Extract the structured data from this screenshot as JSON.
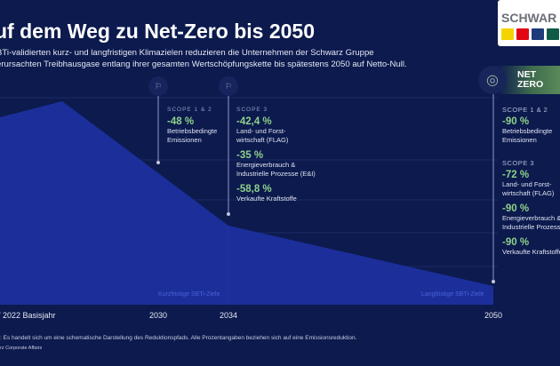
{
  "header": {
    "title": "uf dem Weg zu Net-Zero bis 2050",
    "subtitle_line1": "BTi-validierten kurz- und langfristigen Klimazielen reduzieren die Unternehmen der Schwarz Gruppe",
    "subtitle_line2": "erursachten Treibhausgase entlang ihrer gesamten Wertschöpfungskette bis spätestens 2050 auf Netto-Null."
  },
  "logo": {
    "text": "SCHWAR",
    "brand_colors": [
      "#f4d400",
      "#e30613",
      "#1d3a7a",
      "#0f5b47"
    ]
  },
  "net_zero_badge": {
    "line1": "NET",
    "line2": "ZERO",
    "icon": "globe-leaf-icon"
  },
  "chart_data": {
    "type": "area",
    "x_labels": [
      "/ 2022 Basisjahr",
      "2030",
      "2034",
      "2050"
    ],
    "annotations": {
      "short_term": "Kurzfristige SBTi-Ziele",
      "long_term": "Langfristige SBTi-Ziele"
    },
    "area_color": "#1c2e9a",
    "background": "#0c1a4e",
    "accent": "#8fd08a"
  },
  "milestones": [
    {
      "year": "2030",
      "icon": "flag-icon",
      "groups": [
        {
          "scope": "SCOPE 1 & 2",
          "items": [
            {
              "pct": "-48 %",
              "desc": "Betriebsbedingte Emissionen"
            }
          ]
        }
      ]
    },
    {
      "year": "2034",
      "icon": "flag-icon",
      "groups": [
        {
          "scope": "SCOPE 3",
          "items": [
            {
              "pct": "-42,4 %",
              "desc": "Land- und Forst-wirtschaft (FLAG)"
            },
            {
              "pct": "-35 %",
              "desc": "Energieverbrauch & Industrielle Prozesse (E&I)"
            },
            {
              "pct": "-58,8 %",
              "desc": "Verkaufte Kraftstoffe"
            }
          ]
        }
      ]
    },
    {
      "year": "2050",
      "groups": [
        {
          "scope": "SCOPE 1 & 2",
          "items": [
            {
              "pct": "-90 %",
              "desc": "Betriebsbedingte Emissionen"
            }
          ]
        },
        {
          "scope": "SCOPE 3",
          "items": [
            {
              "pct": "-72 %",
              "desc": "Land- und Forst-wirtschaft (FLAG)"
            },
            {
              "pct": "-90 %",
              "desc": "Energieverbrauch & Industrielle Prozesse"
            },
            {
              "pct": "-90 %",
              "desc": "Verkaufte Kraftstoffe"
            }
          ]
        }
      ]
    }
  ],
  "footer": {
    "note": ": Es handelt sich um eine schematische Darstellung des Reduktionspfads. Alle Prozentangaben beziehen sich auf eine Emissionsreduktion.",
    "source": "rz Corporate Affairs"
  }
}
